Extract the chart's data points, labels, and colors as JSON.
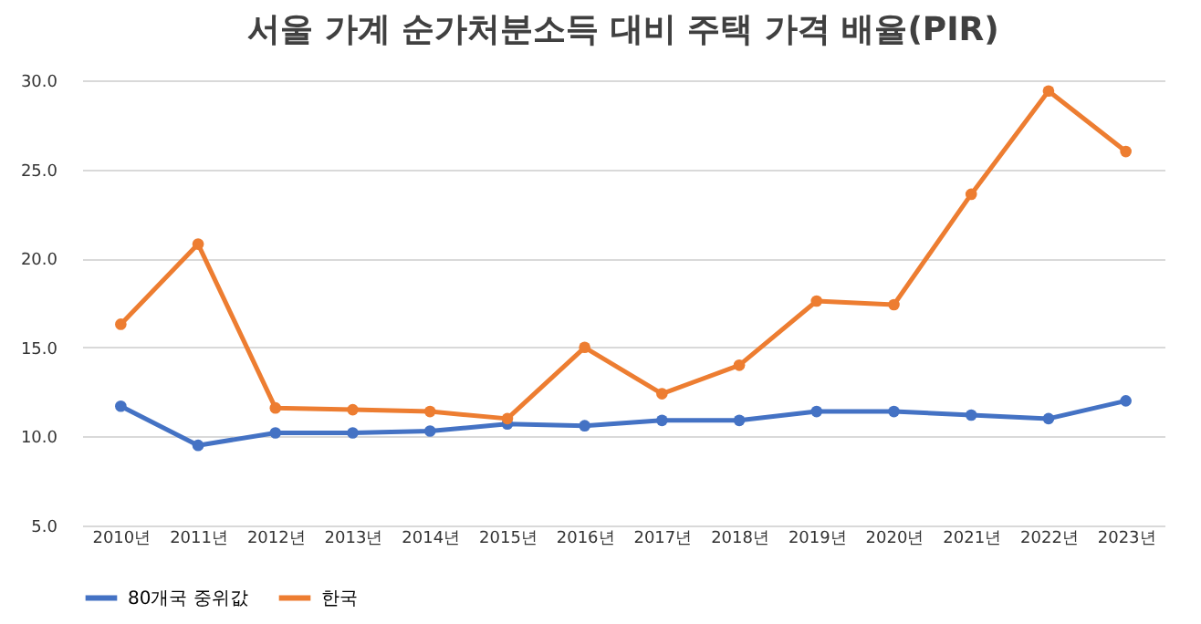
{
  "chart_data": {
    "type": "line",
    "title": "서울 가계 순가처분소득 대비 주택 가격 배율(PIR)",
    "categories": [
      "2010년",
      "2011년",
      "2012년",
      "2013년",
      "2014년",
      "2015년",
      "2016년",
      "2017년",
      "2018년",
      "2019년",
      "2020년",
      "2021년",
      "2022년",
      "2023년"
    ],
    "series": [
      {
        "name": "80개국 중위값",
        "color": "#4472c4",
        "values": [
          11.7,
          9.5,
          10.2,
          10.2,
          10.3,
          10.7,
          10.6,
          10.9,
          10.9,
          11.4,
          11.4,
          11.2,
          11.0,
          12.0
        ]
      },
      {
        "name": "한국",
        "color": "#ed7d31",
        "values": [
          16.3,
          20.8,
          11.6,
          11.5,
          11.4,
          11.0,
          15.0,
          12.4,
          14.0,
          17.6,
          17.4,
          23.6,
          29.4,
          26.0
        ]
      }
    ],
    "ylim": [
      5,
      30
    ],
    "yticks": [
      {
        "value": 5,
        "label": "5.0"
      },
      {
        "value": 10,
        "label": "10.0"
      },
      {
        "value": 15,
        "label": "15.0"
      },
      {
        "value": 20,
        "label": "20.0"
      },
      {
        "value": 25,
        "label": "25.0"
      },
      {
        "value": 30,
        "label": "30.0"
      }
    ],
    "grid": "y",
    "legend": "bottom",
    "marker": "circle",
    "line_style": "solid"
  }
}
